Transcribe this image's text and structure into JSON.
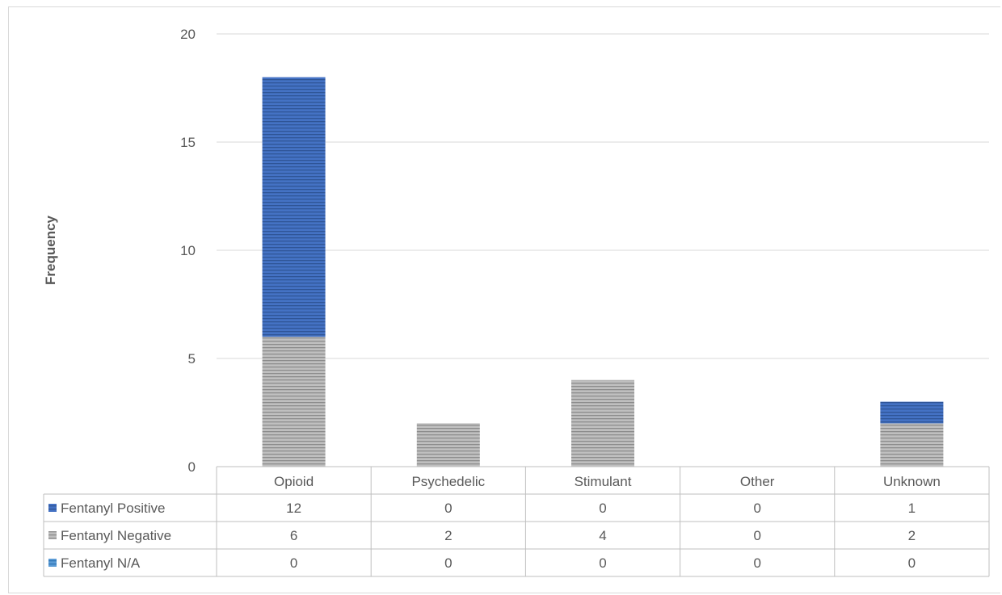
{
  "chart_data": {
    "type": "bar",
    "stacked": true,
    "categories": [
      "Opioid",
      "Psychedelic",
      "Stimulant",
      "Other",
      "Unknown"
    ],
    "series": [
      {
        "name": "Fentanyl Positive",
        "values": [
          12,
          0,
          0,
          0,
          1
        ],
        "color": "#4472c4",
        "stripe": "#2f5597"
      },
      {
        "name": "Fentanyl Negative",
        "values": [
          6,
          2,
          4,
          0,
          2
        ],
        "color": "#bfbfbf",
        "stripe": "#8c8c8c"
      },
      {
        "name": "Fentanyl N/A",
        "values": [
          0,
          0,
          0,
          0,
          0
        ],
        "color": "#5b9bd5",
        "stripe": "#2e75b6"
      }
    ],
    "stack_order_bottom_to_top": [
      "Fentanyl Negative",
      "Fentanyl Positive"
    ],
    "ylabel": "Frequency",
    "xlabel": "",
    "ylim": [
      0,
      20
    ],
    "yticks": [
      0,
      5,
      10,
      15,
      20
    ],
    "grid": true,
    "legend": "data-table"
  }
}
